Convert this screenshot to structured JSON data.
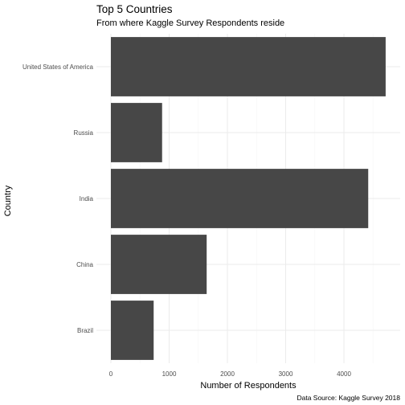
{
  "chart_data": {
    "type": "bar",
    "orientation": "horizontal",
    "title": "Top 5 Countries",
    "subtitle": "From where Kaggle Survey Respondents reside",
    "xlabel": "Number of Respondents",
    "ylabel": "Country",
    "caption": "Data Source: Kaggle Survey 2018",
    "categories": [
      "United States of America",
      "Russia",
      "India",
      "China",
      "Brazil"
    ],
    "values": [
      4716,
      879,
      4417,
      1644,
      734
    ],
    "xlim": [
      0,
      4716
    ],
    "xticks": [
      0,
      1000,
      2000,
      3000,
      4000
    ],
    "grid": true,
    "bar_color": "#474747",
    "grid_major_color": "#ebebeb",
    "grid_minor_color": "#f5f5f5"
  }
}
